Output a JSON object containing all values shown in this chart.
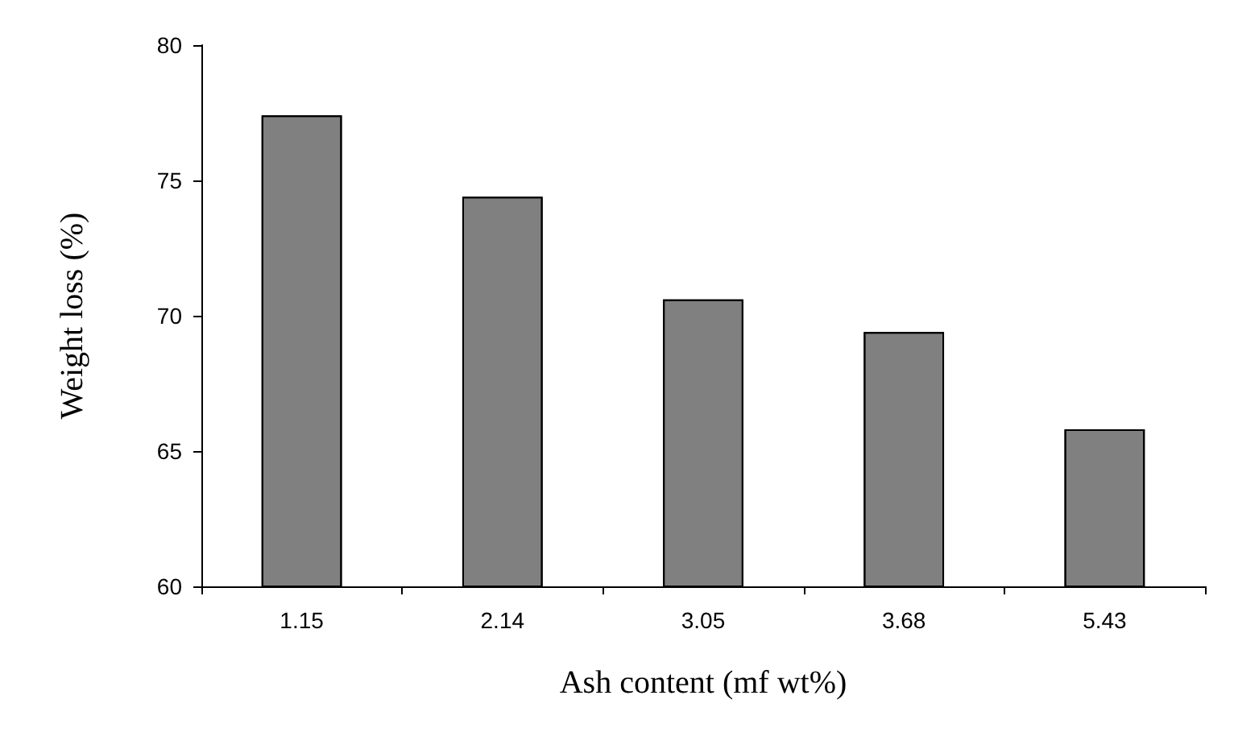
{
  "chart_data": {
    "type": "bar",
    "xlabel": "Ash content (mf wt%)",
    "ylabel": "Weight loss (%)",
    "categories": [
      "1.15",
      "2.14",
      "3.05",
      "3.68",
      "5.43"
    ],
    "values": [
      77.4,
      74.4,
      70.6,
      69.4,
      65.8
    ],
    "color": "#808080",
    "ylim": [
      60,
      80
    ],
    "yticks": [
      60,
      65,
      70,
      75,
      80
    ],
    "grid": false
  }
}
